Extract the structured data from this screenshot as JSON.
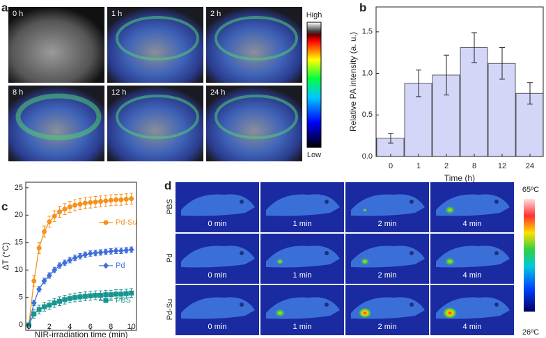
{
  "panel_labels": [
    "a",
    "b",
    "c",
    "d"
  ],
  "panel_a": {
    "time_labels": [
      "0 h",
      "1 h",
      "2 h",
      "8 h",
      "12 h",
      "24 h"
    ],
    "colorbar": {
      "high": "High",
      "low": "Low"
    }
  },
  "chart_data": [
    {
      "type": "bar",
      "categories": [
        "0",
        "1",
        "2",
        "8",
        "12",
        "24"
      ],
      "values": [
        0.22,
        0.88,
        0.98,
        1.31,
        1.12,
        0.76
      ],
      "errors": [
        0.06,
        0.16,
        0.24,
        0.18,
        0.19,
        0.13
      ],
      "color": "#d3d6f6",
      "edge_color": "#333333",
      "xlabel": "Time (h)",
      "ylabel": "Relative PA intensity (a. u.)",
      "ylim": [
        0,
        1.8
      ],
      "yticks": [
        {
          "value": 0,
          "label": "0.0"
        },
        0.5,
        {
          "value": 1,
          "label": "1.0"
        },
        1.5
      ]
    },
    {
      "type": "line",
      "xlabel": "NIR-irradiation time (min)",
      "ylabel": "ΔT (°C)",
      "x": [
        0,
        0.5,
        1,
        1.5,
        2,
        2.5,
        3,
        3.5,
        4,
        4.5,
        5,
        5.5,
        6,
        6.5,
        7,
        7.5,
        8,
        8.5,
        9,
        9.5,
        10
      ],
      "xlim": [
        -0.3,
        10.5
      ],
      "ylim": [
        -1,
        26
      ],
      "xticks": [
        0,
        2,
        4,
        6,
        8,
        10
      ],
      "yticks": [
        0,
        5,
        10,
        15,
        20,
        25
      ],
      "series": [
        {
          "name": "Pd-Su",
          "color": "#f5921e",
          "marker": "circle",
          "values": [
            0,
            8,
            14,
            17,
            18.8,
            19.8,
            20.6,
            21.1,
            21.5,
            21.8,
            22,
            22.2,
            22.3,
            22.4,
            22.5,
            22.6,
            22.7,
            22.8,
            22.8,
            22.9,
            23
          ],
          "errors": [
            0.3,
            1,
            1,
            1,
            1,
            1,
            1,
            1,
            1,
            1,
            1,
            1,
            1,
            1,
            1,
            1,
            1,
            1,
            1,
            1,
            1
          ]
        },
        {
          "name": "Pd",
          "color": "#3f6fd8",
          "marker": "diamond",
          "values": [
            0,
            4,
            6.5,
            8,
            9,
            10,
            10.8,
            11.3,
            11.8,
            12.2,
            12.5,
            12.8,
            13,
            13.1,
            13.2,
            13.3,
            13.4,
            13.5,
            13.5,
            13.6,
            13.7
          ],
          "errors": [
            0.2,
            0.5,
            0.5,
            0.5,
            0.5,
            0.5,
            0.5,
            0.5,
            0.5,
            0.5,
            0.5,
            0.5,
            0.5,
            0.5,
            0.5,
            0.5,
            0.5,
            0.5,
            0.5,
            0.5,
            0.5
          ]
        },
        {
          "name": "PBS",
          "color": "#1a9490",
          "marker": "square",
          "values": [
            0,
            2,
            2.8,
            3.3,
            3.6,
            4,
            4.3,
            4.6,
            4.8,
            5,
            5.1,
            5.2,
            5.3,
            5.4,
            5.4,
            5.5,
            5.5,
            5.6,
            5.6,
            5.7,
            5.8
          ],
          "errors": [
            0.2,
            0.8,
            0.8,
            0.8,
            0.8,
            0.8,
            0.8,
            0.8,
            0.8,
            0.8,
            0.8,
            0.8,
            0.8,
            0.8,
            0.8,
            0.8,
            0.8,
            0.8,
            0.8,
            0.8,
            0.8
          ]
        }
      ]
    }
  ],
  "panel_d": {
    "rows": [
      "PBS",
      "Pd",
      "Pd-Su"
    ],
    "times": [
      "0 min",
      "1 min",
      "2 min",
      "4 min"
    ],
    "colorbar": {
      "max": "65ºC",
      "min": "26ºC"
    }
  }
}
